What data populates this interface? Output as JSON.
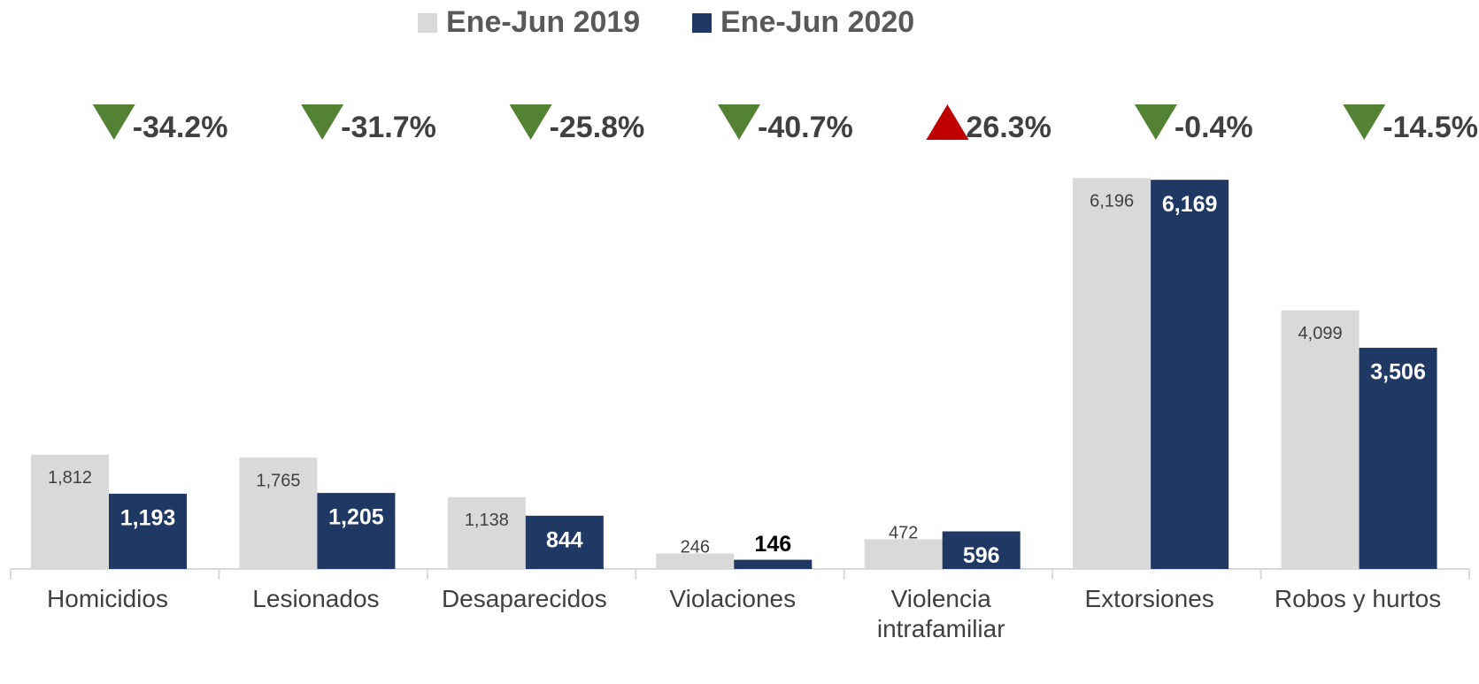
{
  "chart_data": {
    "type": "bar",
    "categories": [
      "Homicidios",
      "Lesionados",
      "Desaparecidos",
      "Violaciones",
      "Violencia intrafamiliar",
      "Extorsiones",
      "Robos y hurtos"
    ],
    "series": [
      {
        "name": "Ene-Jun 2019",
        "color": "#d9d9d9",
        "values": [
          1812,
          1765,
          1138,
          246,
          472,
          6196,
          4099
        ],
        "value_labels": [
          "1,812",
          "1,765",
          "1,138",
          "246",
          "472",
          "6,196",
          "4,099"
        ]
      },
      {
        "name": "Ene-Jun 2020",
        "color": "#203864",
        "values": [
          1193,
          1205,
          844,
          146,
          596,
          6169,
          3506
        ],
        "value_labels": [
          "1,193",
          "1,205",
          "844",
          "146",
          "596",
          "6,169",
          "3,506"
        ]
      }
    ],
    "changes": {
      "values": [
        -34.2,
        -31.7,
        -25.8,
        -40.7,
        26.3,
        -0.4,
        -14.5
      ],
      "value_labels": [
        "-34.2%",
        "-31.7%",
        "-25.8%",
        "-40.7%",
        "26.3%",
        "-0.4%",
        "-14.5%"
      ],
      "up_color": "#c00000",
      "down_color": "#548235"
    },
    "ylim": [
      0,
      6200
    ],
    "legend": "top"
  }
}
